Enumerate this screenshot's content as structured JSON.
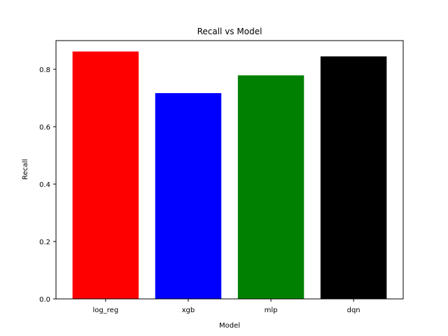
{
  "chart_data": {
    "type": "bar",
    "title": "Recall vs Model",
    "xlabel": "Model",
    "ylabel": "Recall",
    "categories": [
      "log_reg",
      "xgb",
      "mlp",
      "dqn"
    ],
    "values": [
      0.862,
      0.717,
      0.779,
      0.845
    ],
    "colors": [
      "#ff0000",
      "#0000ff",
      "#008000",
      "#000000"
    ],
    "ylim": [
      0,
      0.9
    ],
    "yticks": [
      0.0,
      0.2,
      0.4,
      0.6,
      0.8
    ],
    "ytick_labels": [
      "0.0",
      "0.2",
      "0.4",
      "0.6",
      "0.8"
    ],
    "grid": false,
    "legend": false
  }
}
